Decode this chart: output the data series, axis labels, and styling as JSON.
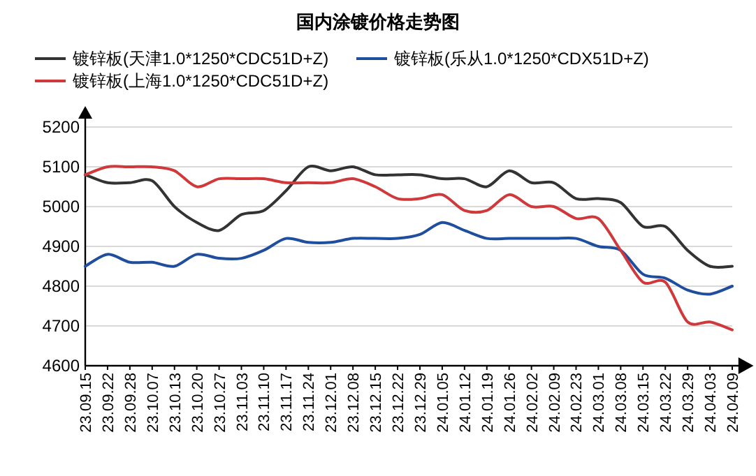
{
  "chart_data": {
    "type": "line",
    "title": "国内涂镀价格走势图",
    "categories": [
      "23.09.15",
      "23.09.22",
      "23.09.28",
      "23.10.07",
      "23.10.13",
      "23.10.20",
      "23.10.27",
      "23.11.03",
      "23.11.10",
      "23.11.17",
      "23.11.24",
      "23.12.01",
      "23.12.08",
      "23.12.15",
      "23.12.22",
      "23.12.29",
      "24.01.05",
      "24.01.12",
      "24.01.19",
      "24.01.26",
      "24.02.02",
      "24.02.09",
      "24.02.23",
      "24.03.01",
      "24.03.08",
      "24.03.15",
      "24.03.22",
      "24.03.29",
      "24.04.03",
      "24.04.09"
    ],
    "series": [
      {
        "name": "镀锌板(天津1.0*1250*CDC51D+Z)",
        "color": "#333333",
        "values": [
          5080,
          5060,
          5060,
          5065,
          5000,
          4960,
          4940,
          4980,
          4990,
          5040,
          5100,
          5090,
          5100,
          5080,
          5080,
          5080,
          5070,
          5070,
          5050,
          5090,
          5060,
          5060,
          5020,
          5020,
          5010,
          4950,
          4950,
          4890,
          4850,
          4850
        ]
      },
      {
        "name": "镀锌板(乐从1.0*1250*CDX51D+Z)",
        "color": "#1f4e9f",
        "values": [
          4850,
          4880,
          4860,
          4860,
          4850,
          4880,
          4870,
          4870,
          4890,
          4920,
          4910,
          4910,
          4920,
          4920,
          4920,
          4930,
          4960,
          4940,
          4920,
          4920,
          4920,
          4920,
          4920,
          4900,
          4890,
          4830,
          4820,
          4790,
          4780,
          4800
        ]
      },
      {
        "name": "镀锌板(上海1.0*1250*CDC51D+Z)",
        "color": "#d0393b",
        "values": [
          5080,
          5100,
          5100,
          5100,
          5090,
          5050,
          5070,
          5070,
          5070,
          5060,
          5060,
          5060,
          5070,
          5050,
          5020,
          5020,
          5030,
          4990,
          4990,
          5030,
          5000,
          5000,
          4970,
          4970,
          4890,
          4810,
          4810,
          4710,
          4710,
          4690
        ]
      }
    ],
    "ylim": [
      4600,
      5200
    ],
    "yticks": [
      4600,
      4700,
      4800,
      4900,
      5000,
      5100,
      5200
    ],
    "grid": "y",
    "legend": "top",
    "marker": "none",
    "line_style": "solid"
  }
}
